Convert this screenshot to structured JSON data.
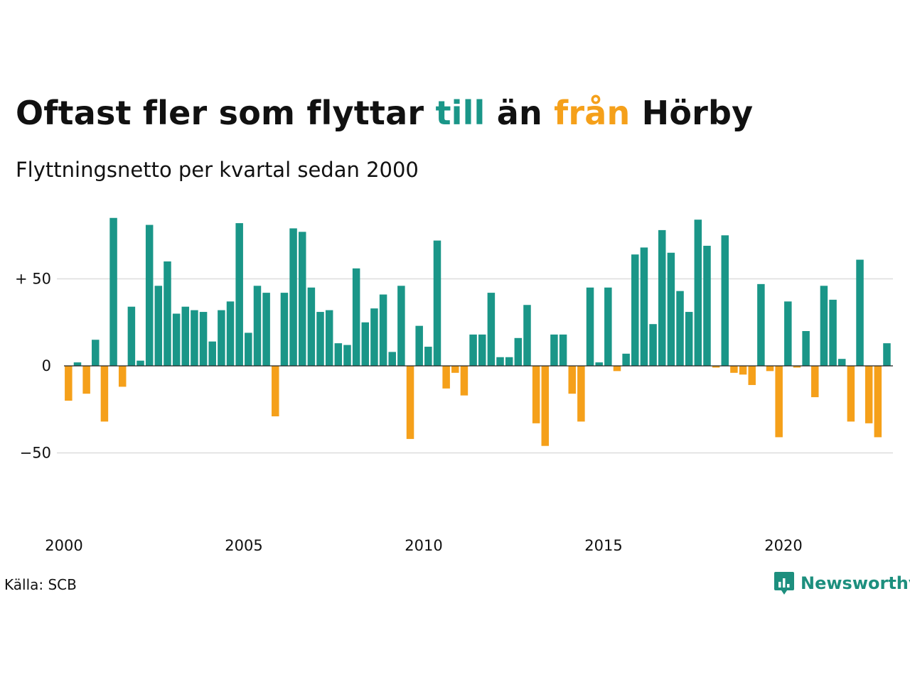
{
  "title": {
    "part1": "Oftast fler som flyttar ",
    "up_word": "till",
    "part2": " än ",
    "down_word": "från",
    "part3": " Hörby"
  },
  "subtitle": "Flyttningsnetto per kvartal sedan 2000",
  "source": "Källa: SCB",
  "brand": {
    "name": "Newsworthy",
    "logo_icon": "newsworthy-chart-bubble-icon"
  },
  "colors": {
    "positive": "#1a9688",
    "negative": "#f5a01a",
    "grid": "#dddddd",
    "zero_line": "#222222",
    "brand": "#1d8f7e"
  },
  "chart_data": {
    "type": "bar",
    "x_start": "2000 Q1",
    "x_step": "quarter",
    "xlim": [
      "2000 Q1",
      "2023 Q1"
    ],
    "ylim": [
      -75,
      90
    ],
    "y_ticks": [
      {
        "value": 50,
        "label": "+ 50"
      },
      {
        "value": 0,
        "label": "0"
      },
      {
        "value": -50,
        "label": "−50"
      }
    ],
    "x_ticks": [
      "2000",
      "2005",
      "2010",
      "2015",
      "2020"
    ],
    "grid": true,
    "values": [
      -20,
      2,
      -16,
      15,
      -32,
      85,
      -12,
      34,
      3,
      81,
      46,
      60,
      30,
      34,
      32,
      31,
      14,
      32,
      37,
      82,
      19,
      46,
      42,
      -29,
      42,
      79,
      77,
      45,
      31,
      32,
      13,
      12,
      56,
      25,
      33,
      41,
      8,
      46,
      -42,
      23,
      11,
      72,
      -13,
      -4,
      -17,
      18,
      18,
      42,
      5,
      5,
      16,
      35,
      -33,
      -46,
      18,
      18,
      -16,
      -32,
      45,
      2,
      45,
      -3,
      7,
      64,
      68,
      24,
      78,
      65,
      43,
      31,
      84,
      69,
      -1,
      75,
      -4,
      -5,
      -11,
      47,
      -3,
      -41,
      37,
      -1,
      20,
      -18,
      46,
      38,
      4,
      -32,
      61,
      -33,
      -41,
      13
    ]
  }
}
